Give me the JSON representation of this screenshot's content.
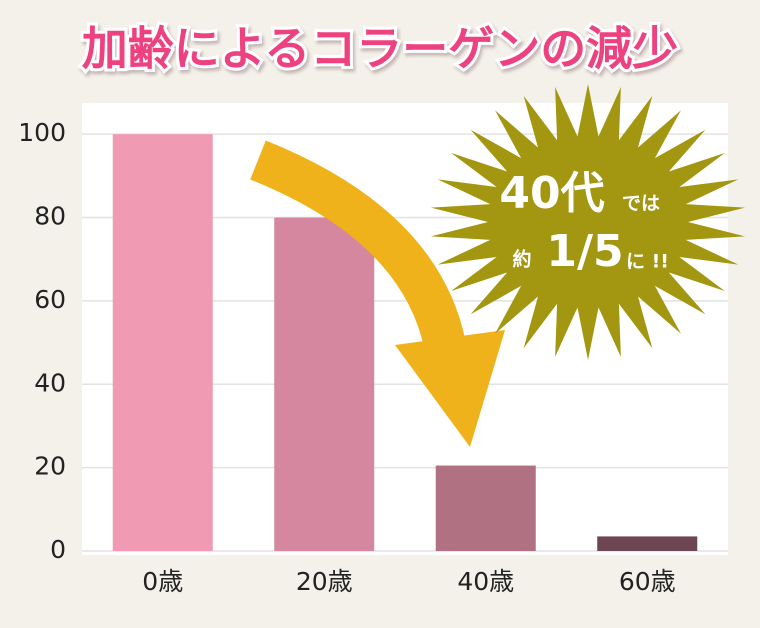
{
  "chart_data": {
    "type": "bar",
    "title": "加齢によるコラーゲンの減少",
    "categories": [
      "0歳",
      "20歳",
      "40歳",
      "60歳"
    ],
    "values": [
      100,
      80,
      20.5,
      3.5
    ],
    "colors": [
      "#f09ab4",
      "#d4879f",
      "#b07182",
      "#6e4552"
    ],
    "ylim": [
      0,
      107
    ],
    "yticks": [
      0,
      20,
      40,
      60,
      80,
      100
    ],
    "grid": true,
    "annotations": [
      "40代",
      "では",
      "約",
      "1/5",
      "に !!"
    ]
  }
}
